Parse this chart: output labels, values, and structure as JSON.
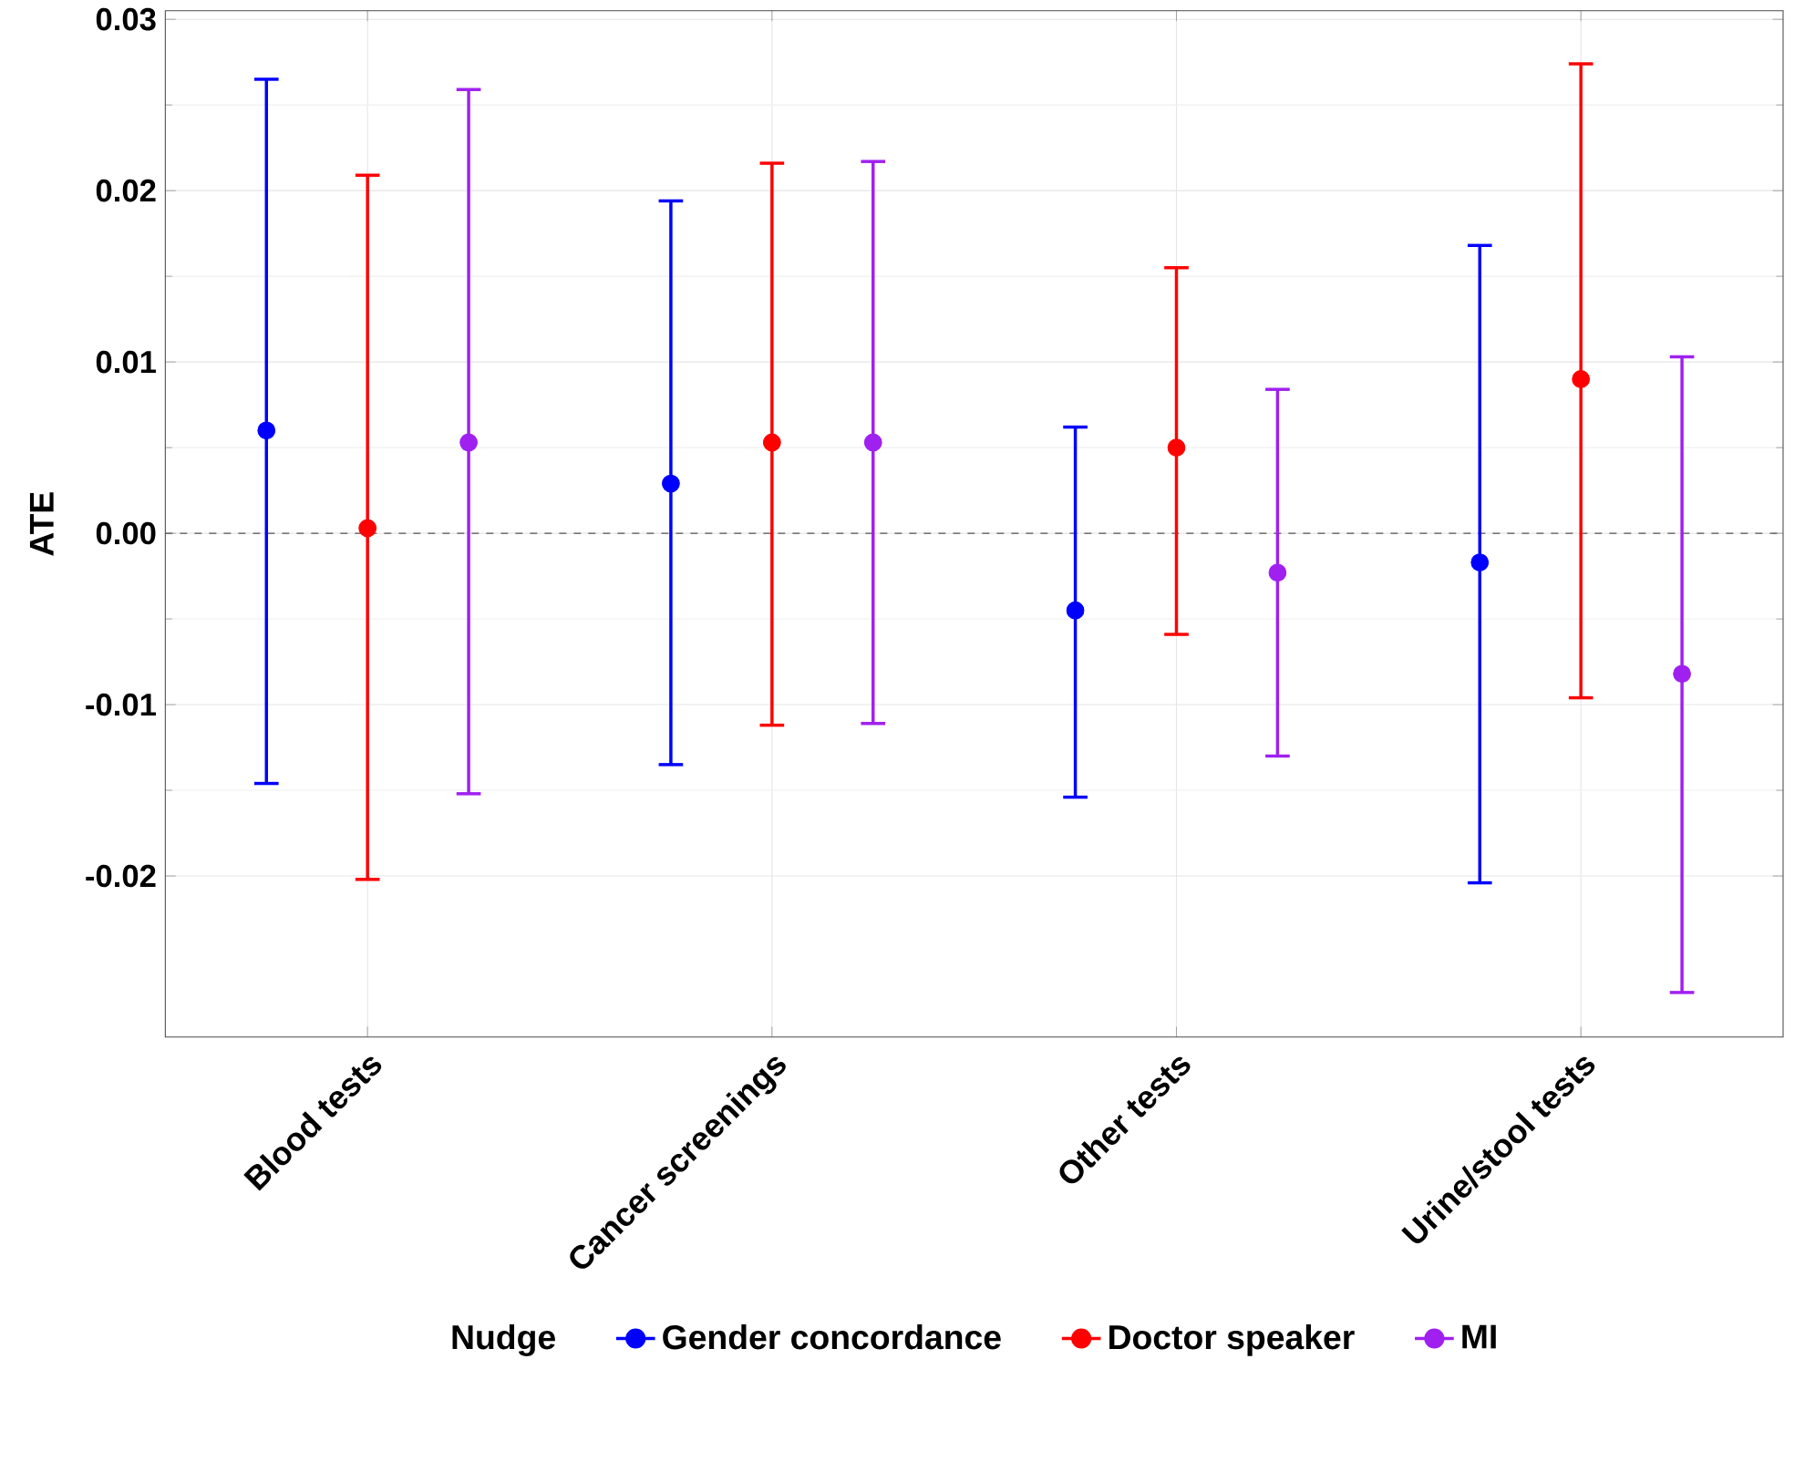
{
  "chart_data": {
    "type": "scatter",
    "ylabel": "ATE",
    "legend_title": "Nudge",
    "categories": [
      "Blood tests",
      "Cancer screenings",
      "Other tests",
      "Urine/stool tests"
    ],
    "series": [
      {
        "name": "Gender concordance",
        "color": "#0000ff",
        "values": [
          0.006,
          0.0029,
          -0.0045,
          -0.0017
        ],
        "errors": [
          [
            -0.0146,
            0.0265
          ],
          [
            -0.0135,
            0.0194
          ],
          [
            -0.0154,
            0.0062
          ],
          [
            -0.0204,
            0.0168
          ]
        ]
      },
      {
        "name": "Doctor speaker",
        "color": "#ff0000",
        "values": [
          0.0003,
          0.0053,
          0.005,
          0.009
        ],
        "errors": [
          [
            -0.0202,
            0.0209
          ],
          [
            -0.0112,
            0.0216
          ],
          [
            -0.0059,
            0.0155
          ],
          [
            -0.0096,
            0.0274
          ]
        ]
      },
      {
        "name": "MI",
        "color": "#a020f0",
        "values": [
          0.0053,
          0.0053,
          -0.0023,
          -0.0082
        ],
        "errors": [
          [
            -0.0152,
            0.0259
          ],
          [
            -0.0111,
            0.0217
          ],
          [
            -0.013,
            0.0084
          ],
          [
            -0.0268,
            0.0103
          ]
        ]
      }
    ],
    "ylim": [
      -0.0294,
      0.0305
    ],
    "yticks": [
      {
        "value": -0.02,
        "label": "-0.02"
      },
      {
        "value": -0.01,
        "label": "-0.01"
      },
      {
        "value": 0,
        "label": "0.00"
      },
      {
        "value": 0.01,
        "label": "0.01"
      },
      {
        "value": 0.02,
        "label": "0.02"
      },
      {
        "value": 0.03,
        "label": "0.03"
      }
    ],
    "ref_lines": [
      {
        "axis": "y",
        "value": 0,
        "color": "#555555",
        "line_style": "dashed"
      }
    ],
    "grid": true,
    "legend": "bottom",
    "marker": "circle"
  }
}
